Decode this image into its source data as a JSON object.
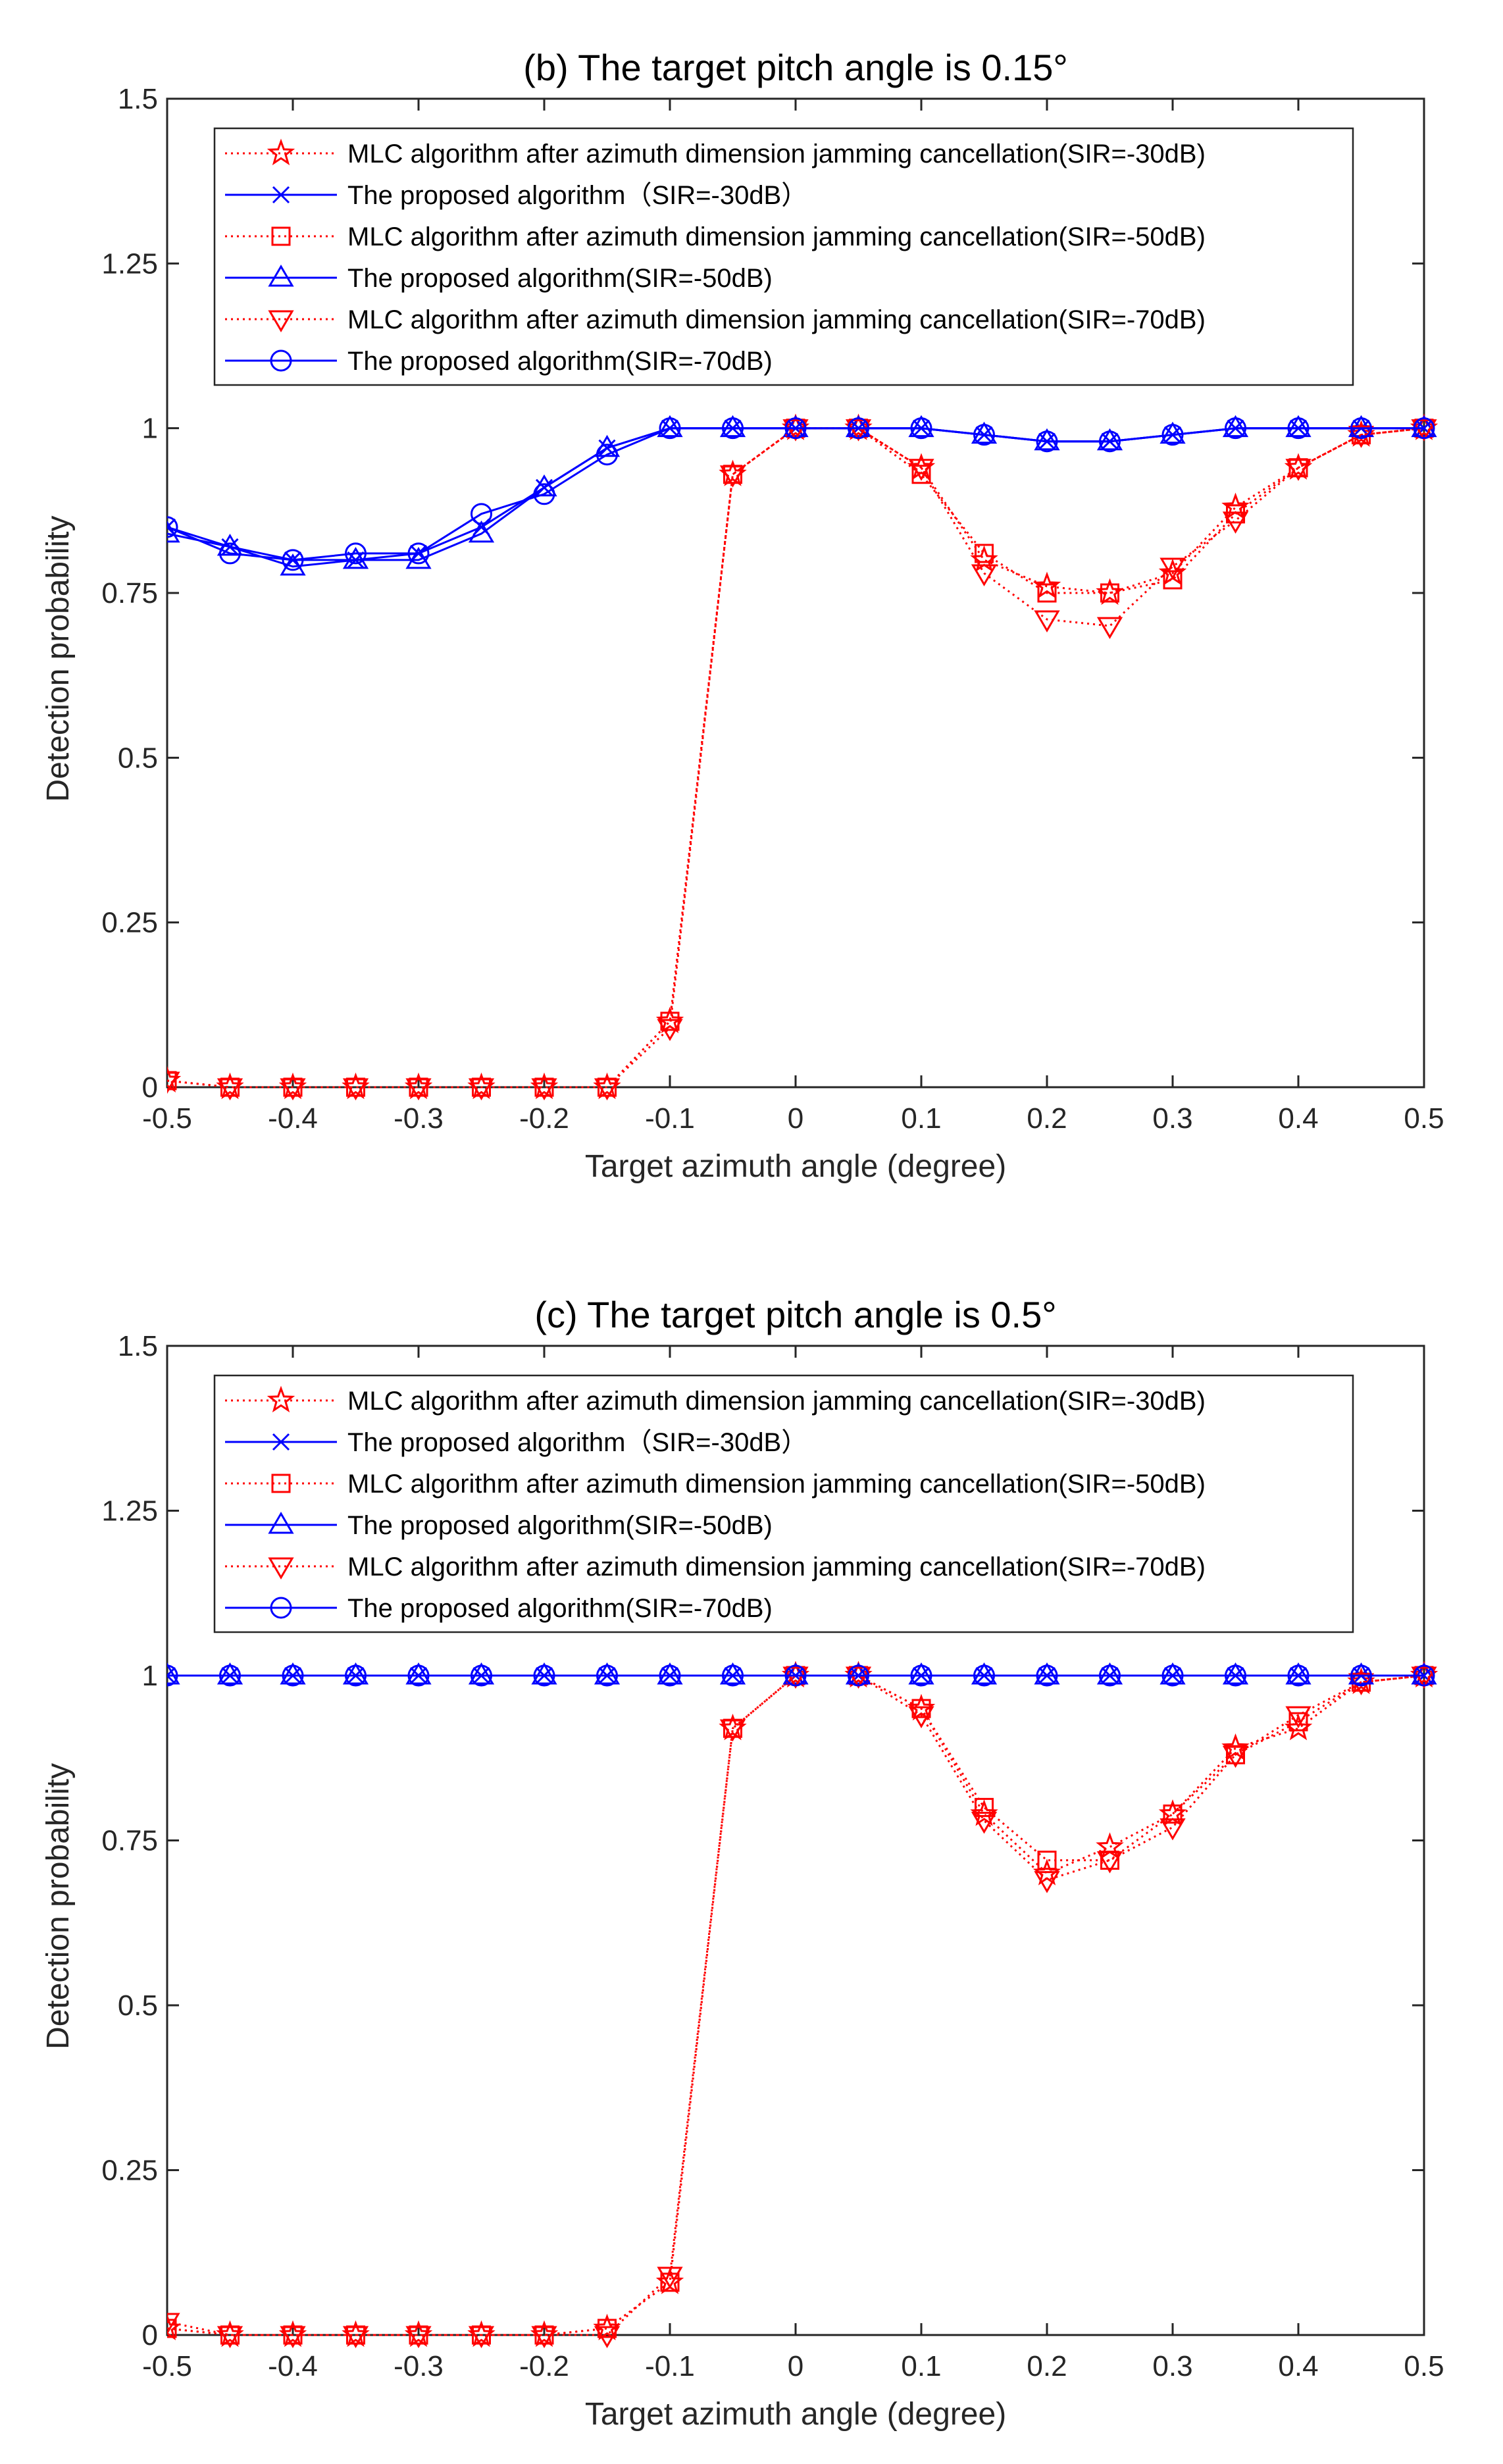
{
  "colors": {
    "mlc": "#ff0000",
    "proposed": "#0000ff",
    "axis": "#262626"
  },
  "chart_data": [
    {
      "type": "line",
      "title": "(b) The target pitch angle is 0.15°",
      "xlabel": "Target azimuth angle (degree)",
      "ylabel": "Detection probability",
      "xlim": [
        -0.5,
        0.5
      ],
      "ylim": [
        0,
        1.5
      ],
      "xticks": [
        -0.5,
        -0.4,
        -0.3,
        -0.2,
        -0.1,
        0,
        0.1,
        0.2,
        0.3,
        0.4,
        0.5
      ],
      "xtick_labels": [
        "-0.5",
        "-0.4",
        "-0.3",
        "-0.2",
        "-0.1",
        "0",
        "0.1",
        "0.2",
        "0.3",
        "0.4",
        "0.5"
      ],
      "yticks": [
        0,
        0.25,
        0.5,
        0.75,
        1,
        1.25,
        1.5
      ],
      "ytick_labels": [
        "0",
        "0.25",
        "0.5",
        "0.75",
        "1",
        "1.25",
        "1.5"
      ],
      "legend_position": "top",
      "x": [
        -0.5,
        -0.45,
        -0.4,
        -0.35,
        -0.3,
        -0.25,
        -0.2,
        -0.15,
        -0.1,
        -0.05,
        0,
        0.05,
        0.1,
        0.15,
        0.2,
        0.25,
        0.3,
        0.35,
        0.4,
        0.45,
        0.5
      ],
      "series": [
        {
          "name": "MLC algorithm after azimuth dimension jamming cancellation(SIR=-30dB)",
          "color": "#ff0000",
          "style": "dotted",
          "marker": "star",
          "values": [
            0.01,
            0,
            0,
            0,
            0,
            0,
            0,
            0,
            0.1,
            0.93,
            1,
            1,
            0.94,
            0.8,
            0.76,
            0.75,
            0.78,
            0.88,
            0.94,
            0.99,
            1
          ]
        },
        {
          "name": "The proposed algorithm（SIR=-30dB）",
          "color": "#0000ff",
          "style": "solid",
          "marker": "x",
          "values": [
            0.85,
            0.82,
            0.8,
            0.8,
            0.81,
            0.85,
            0.91,
            0.97,
            1,
            1,
            1,
            1,
            1,
            0.99,
            0.98,
            0.98,
            0.99,
            1,
            1,
            1,
            1
          ]
        },
        {
          "name": "MLC algorithm after azimuth dimension jamming cancellation(SIR=-50dB)",
          "color": "#ff0000",
          "style": "dotted",
          "marker": "square",
          "values": [
            0.01,
            0,
            0,
            0,
            0,
            0,
            0,
            0,
            0.1,
            0.93,
            1,
            1,
            0.93,
            0.81,
            0.75,
            0.75,
            0.77,
            0.87,
            0.94,
            0.99,
            1
          ]
        },
        {
          "name": "The proposed algorithm(SIR=-50dB)",
          "color": "#0000ff",
          "style": "solid",
          "marker": "triangle-up",
          "values": [
            0.84,
            0.82,
            0.79,
            0.8,
            0.8,
            0.84,
            0.91,
            0.97,
            1,
            1,
            1,
            1,
            1,
            0.99,
            0.98,
            0.98,
            0.99,
            1,
            1,
            1,
            1
          ]
        },
        {
          "name": "MLC algorithm after azimuth dimension jamming cancellation(SIR=-70dB)",
          "color": "#ff0000",
          "style": "dotted",
          "marker": "triangle-down",
          "values": [
            0.01,
            0,
            0,
            0,
            0,
            0,
            0,
            0,
            0.09,
            0.93,
            1,
            1,
            0.94,
            0.78,
            0.71,
            0.7,
            0.79,
            0.86,
            0.94,
            0.99,
            1
          ]
        },
        {
          "name": "The proposed algorithm(SIR=-70dB)",
          "color": "#0000ff",
          "style": "solid",
          "marker": "circle",
          "values": [
            0.85,
            0.81,
            0.8,
            0.81,
            0.81,
            0.87,
            0.9,
            0.96,
            1,
            1,
            1,
            1,
            1,
            0.99,
            0.98,
            0.98,
            0.99,
            1,
            1,
            1,
            1
          ]
        }
      ]
    },
    {
      "type": "line",
      "title": "(c) The target pitch angle is 0.5°",
      "xlabel": "Target azimuth angle (degree)",
      "ylabel": "Detection probability",
      "xlim": [
        -0.5,
        0.5
      ],
      "ylim": [
        0,
        1.5
      ],
      "xticks": [
        -0.5,
        -0.4,
        -0.3,
        -0.2,
        -0.1,
        0,
        0.1,
        0.2,
        0.3,
        0.4,
        0.5
      ],
      "xtick_labels": [
        "-0.5",
        "-0.4",
        "-0.3",
        "-0.2",
        "-0.1",
        "0",
        "0.1",
        "0.2",
        "0.3",
        "0.4",
        "0.5"
      ],
      "yticks": [
        0,
        0.25,
        0.5,
        0.75,
        1,
        1.25,
        1.5
      ],
      "ytick_labels": [
        "0",
        "0.25",
        "0.5",
        "0.75",
        "1",
        "1.25",
        "1.5"
      ],
      "legend_position": "top",
      "x": [
        -0.5,
        -0.45,
        -0.4,
        -0.35,
        -0.3,
        -0.25,
        -0.2,
        -0.15,
        -0.1,
        -0.05,
        0,
        0.05,
        0.1,
        0.15,
        0.2,
        0.25,
        0.3,
        0.35,
        0.4,
        0.45,
        0.5
      ],
      "series": [
        {
          "name": "MLC algorithm after azimuth dimension jamming cancellation(SIR=-30dB)",
          "color": "#ff0000",
          "style": "dotted",
          "marker": "star",
          "values": [
            0.01,
            0,
            0,
            0,
            0,
            0,
            0,
            0.01,
            0.08,
            0.92,
            1,
            1,
            0.95,
            0.79,
            0.7,
            0.74,
            0.79,
            0.89,
            0.92,
            0.99,
            1
          ]
        },
        {
          "name": "The proposed algorithm（SIR=-30dB）",
          "color": "#0000ff",
          "style": "solid",
          "marker": "x",
          "values": [
            1,
            1,
            1,
            1,
            1,
            1,
            1,
            1,
            1,
            1,
            1,
            1,
            1,
            1,
            1,
            1,
            1,
            1,
            1,
            1,
            1
          ]
        },
        {
          "name": "MLC algorithm after azimuth dimension jamming cancellation(SIR=-50dB)",
          "color": "#ff0000",
          "style": "dotted",
          "marker": "square",
          "values": [
            0.01,
            0,
            0,
            0,
            0,
            0,
            0,
            0.01,
            0.08,
            0.92,
            1,
            1,
            0.95,
            0.8,
            0.72,
            0.72,
            0.79,
            0.88,
            0.93,
            0.99,
            1
          ]
        },
        {
          "name": "The proposed algorithm(SIR=-50dB)",
          "color": "#0000ff",
          "style": "solid",
          "marker": "triangle-up",
          "values": [
            1,
            1,
            1,
            1,
            1,
            1,
            1,
            1,
            1,
            1,
            1,
            1,
            1,
            1,
            1,
            1,
            1,
            1,
            1,
            1,
            1
          ]
        },
        {
          "name": "MLC algorithm after azimuth dimension jamming cancellation(SIR=-70dB)",
          "color": "#ff0000",
          "style": "dotted",
          "marker": "triangle-down",
          "values": [
            0.02,
            0,
            0,
            0,
            0,
            0,
            0,
            0,
            0.09,
            0.92,
            1,
            1,
            0.94,
            0.78,
            0.69,
            0.72,
            0.77,
            0.88,
            0.94,
            0.99,
            1
          ]
        },
        {
          "name": "The proposed algorithm(SIR=-70dB)",
          "color": "#0000ff",
          "style": "solid",
          "marker": "circle",
          "values": [
            1,
            1,
            1,
            1,
            1,
            1,
            1,
            1,
            1,
            1,
            1,
            1,
            1,
            1,
            1,
            1,
            1,
            1,
            1,
            1,
            1
          ]
        }
      ]
    }
  ]
}
